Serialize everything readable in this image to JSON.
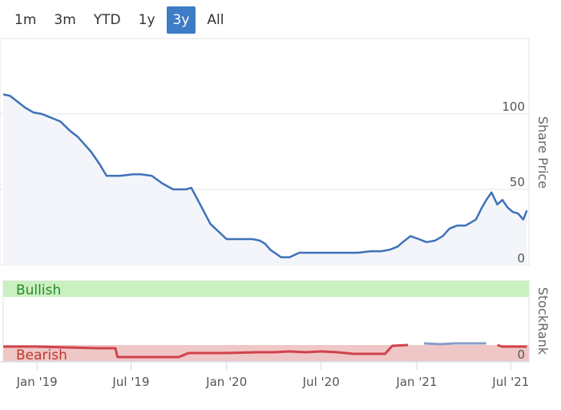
{
  "range_selector": {
    "buttons": [
      {
        "label": "1m"
      },
      {
        "label": "3m"
      },
      {
        "label": "YTD"
      },
      {
        "label": "1y"
      },
      {
        "label": "3y",
        "active": true
      },
      {
        "label": "All"
      }
    ]
  },
  "colors": {
    "price_line": "#3f72b8",
    "price_fill": "#f3f5fb",
    "stockrank_line": "#d0434d",
    "stockrank_line_bullish": "#8a9cc8",
    "bullish_band": "#c9f0c0",
    "bearish_band": "#efc7c7",
    "bullish_text": "#2a8a2a",
    "bearish_text": "#c0392b"
  },
  "chart_data": [
    {
      "type": "line",
      "title": "",
      "ylabel": "Share Price",
      "xlabel": "",
      "xlim": [
        "2018-10-28",
        "2021-08-05"
      ],
      "ylim": [
        0,
        150
      ],
      "yticks": [
        0,
        50,
        100
      ],
      "xticks": [
        "2019-01-01",
        "2019-07-01",
        "2020-01-01",
        "2020-07-01",
        "2021-01-01",
        "2021-07-01"
      ],
      "xtick_labels": [
        "Jan '19",
        "Jul '19",
        "Jan '20",
        "Jul '20",
        "Jan '21",
        "Jul '21"
      ],
      "grid": true,
      "series": [
        {
          "x": [
            "2018-10-28",
            "2018-11-10",
            "2018-11-25",
            "2018-12-10",
            "2018-12-25",
            "2019-01-10",
            "2019-01-25",
            "2019-02-15",
            "2019-03-05",
            "2019-03-20",
            "2019-04-02",
            "2019-04-15",
            "2019-05-01",
            "2019-05-15",
            "2019-06-10",
            "2019-07-05",
            "2019-07-20",
            "2019-08-10",
            "2019-08-30",
            "2019-09-20",
            "2019-10-05",
            "2019-10-15",
            "2019-10-25",
            "2019-11-05",
            "2019-12-01",
            "2020-01-01",
            "2020-02-01",
            "2020-02-20",
            "2020-03-05",
            "2020-03-15",
            "2020-03-25",
            "2020-04-15",
            "2020-05-01",
            "2020-05-20",
            "2020-06-10",
            "2020-07-05",
            "2020-07-20",
            "2020-08-15",
            "2020-09-10",
            "2020-10-05",
            "2020-10-25",
            "2020-11-10",
            "2020-11-25",
            "2020-12-05",
            "2020-12-20",
            "2021-01-05",
            "2021-01-20",
            "2021-02-05",
            "2021-02-20",
            "2021-03-05",
            "2021-03-20",
            "2021-04-05",
            "2021-04-15",
            "2021-04-25",
            "2021-05-05",
            "2021-05-15",
            "2021-05-25",
            "2021-06-05",
            "2021-06-15",
            "2021-06-25",
            "2021-07-05",
            "2021-07-15",
            "2021-07-25",
            "2021-08-01"
          ],
          "y": [
            113,
            112,
            108,
            104,
            101,
            100,
            98,
            95,
            89,
            85,
            80,
            75,
            67,
            59,
            59,
            60,
            60,
            59,
            54,
            50,
            50,
            50,
            51,
            44,
            27,
            17,
            17,
            17,
            16,
            14,
            10,
            5,
            5,
            8,
            8,
            8,
            8,
            8,
            8,
            9,
            9,
            10,
            12,
            15,
            19,
            17,
            15,
            16,
            19,
            24,
            26,
            26,
            28,
            30,
            37,
            43,
            48,
            40,
            43,
            38,
            35,
            34,
            30,
            36
          ]
        }
      ]
    },
    {
      "type": "line",
      "title": "",
      "ylabel": "StockRank",
      "xlabel": "",
      "xlim": [
        "2018-10-28",
        "2021-08-05"
      ],
      "ylim": [
        0,
        100
      ],
      "yticks": [
        0
      ],
      "bands": [
        {
          "label": "Bullish",
          "from": 80,
          "to": 100
        },
        {
          "label": "Bearish",
          "from": 0,
          "to": 20
        }
      ],
      "series": [
        {
          "x": [
            "2018-10-28",
            "2019-01-01",
            "2019-03-01",
            "2019-05-01",
            "2019-06-01",
            "2019-06-05",
            "2019-08-01",
            "2019-10-01",
            "2019-10-20",
            "2020-01-01",
            "2020-03-01",
            "2020-04-01",
            "2020-05-01",
            "2020-06-01",
            "2020-07-01",
            "2020-08-01",
            "2020-09-01",
            "2020-11-01",
            "2020-11-15",
            "2020-12-15",
            "2021-01-15",
            "2021-02-15",
            "2021-03-15",
            "2021-04-15",
            "2021-05-15",
            "2021-06-05",
            "2021-06-15",
            "2021-07-15",
            "2021-08-01"
          ],
          "y": [
            18,
            18,
            17,
            16,
            16,
            5,
            5,
            5,
            10,
            10,
            11,
            11,
            12,
            11,
            12,
            11,
            9,
            9,
            19,
            20,
            22,
            21,
            22,
            22,
            22,
            20,
            18,
            18,
            18
          ]
        }
      ]
    }
  ]
}
